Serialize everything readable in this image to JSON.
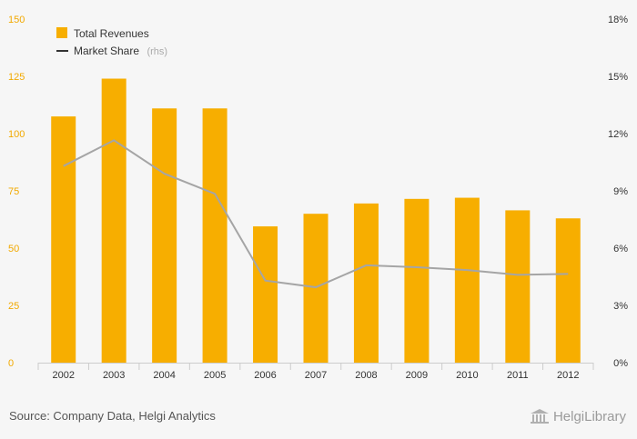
{
  "chart_data": {
    "type": "bar",
    "categories": [
      "2002",
      "2003",
      "2004",
      "2005",
      "2006",
      "2007",
      "2008",
      "2009",
      "2010",
      "2011",
      "2012"
    ],
    "series": [
      {
        "name": "Total Revenues",
        "type": "bar",
        "axis": "left",
        "values": [
          107.5,
          124,
          111,
          111,
          59.5,
          65,
          69.5,
          71.5,
          72,
          66.5,
          63
        ]
      },
      {
        "name": "Market Share",
        "name_suffix": "(rhs)",
        "type": "line",
        "axis": "right",
        "values": [
          10.3,
          11.65,
          9.9,
          8.85,
          4.3,
          3.95,
          5.1,
          5.0,
          4.85,
          4.6,
          4.65
        ]
      }
    ],
    "left_axis": {
      "min": 0,
      "max": 150,
      "ticks": [
        "0",
        "25",
        "50",
        "75",
        "100",
        "125",
        "150"
      ]
    },
    "right_axis": {
      "min": 0,
      "max": 18,
      "ticks": [
        "0%",
        "3%",
        "6%",
        "9%",
        "12%",
        "15%",
        "18%"
      ]
    },
    "legend_position": "top-left",
    "grid": false,
    "colors": {
      "bar": "#f7ae00",
      "line": "#a5a5a5",
      "legend_line": "#333333",
      "left_ticks": "#f2a900",
      "background": "#f6f6f6"
    }
  },
  "footer": {
    "source": "Source: Company Data, Helgi Analytics",
    "logo_text": "HelgiLibrary",
    "logo_icon": "library-building-icon"
  }
}
